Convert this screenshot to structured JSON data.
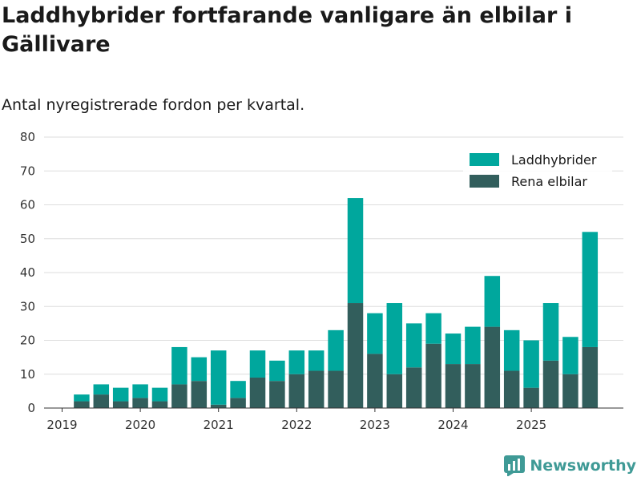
{
  "title": "Laddhybrider fortfarande vanligare än elbilar i Gällivare",
  "subtitle": "Antal nyregistrerade fordon per kvartal.",
  "brand": "Newsworthy",
  "colors": {
    "phev": "#00a79d",
    "bev": "#325e5c",
    "grid": "#dddddd",
    "axis": "#333333",
    "brand": "#3f9a96"
  },
  "chart_data": {
    "type": "bar",
    "stacked": true,
    "title": "Laddhybrider fortfarande vanligare än elbilar i Gällivare",
    "subtitle": "Antal nyregistrerade fordon per kvartal.",
    "xlabel": "",
    "ylabel": "",
    "ylim": [
      0,
      80
    ],
    "yticks": [
      0,
      10,
      20,
      30,
      40,
      50,
      60,
      70,
      80
    ],
    "xtick_labels": [
      "2019",
      "2020",
      "2021",
      "2022",
      "2023",
      "2024",
      "2025"
    ],
    "xtick_positions": [
      0,
      4,
      8,
      12,
      16,
      20,
      24
    ],
    "categories": [
      "2019 Q1",
      "2019 Q2",
      "2019 Q3",
      "2019 Q4",
      "2020 Q1",
      "2020 Q2",
      "2020 Q3",
      "2020 Q4",
      "2021 Q1",
      "2021 Q2",
      "2021 Q3",
      "2021 Q4",
      "2022 Q1",
      "2022 Q2",
      "2022 Q3",
      "2022 Q4",
      "2023 Q1",
      "2023 Q2",
      "2023 Q3",
      "2023 Q4",
      "2024 Q1",
      "2024 Q2",
      "2024 Q3",
      "2024 Q4",
      "2025 Q1",
      "2025 Q2",
      "2025 Q3",
      "2025 Q4"
    ],
    "series": [
      {
        "name": "Rena elbilar",
        "color": "#325e5c",
        "values": [
          0,
          2,
          4,
          2,
          3,
          2,
          7,
          8,
          1,
          3,
          9,
          8,
          10,
          11,
          11,
          31,
          16,
          10,
          12,
          19,
          13,
          13,
          24,
          11,
          6,
          14,
          10,
          18
        ]
      },
      {
        "name": "Laddhybrider",
        "color": "#00a79d",
        "values": [
          0,
          2,
          3,
          4,
          4,
          4,
          11,
          7,
          16,
          5,
          8,
          6,
          7,
          6,
          12,
          31,
          12,
          21,
          13,
          9,
          9,
          11,
          15,
          12,
          14,
          17,
          11,
          34
        ]
      }
    ],
    "legend": [
      "Laddhybrider",
      "Rena elbilar"
    ],
    "legend_position": "top-right",
    "grid": true
  }
}
